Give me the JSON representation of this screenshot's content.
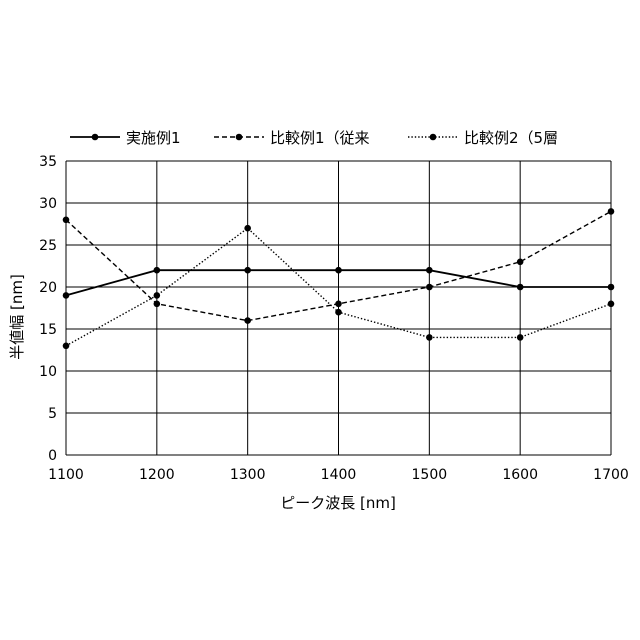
{
  "chart_data": {
    "type": "line",
    "x": [
      1100,
      1200,
      1300,
      1400,
      1500,
      1600,
      1700
    ],
    "xlabel": "ピーク波長 [nm]",
    "ylabel": "半値幅 [nm]",
    "xlim": [
      1100,
      1700
    ],
    "ylim": [
      0,
      35
    ],
    "yticks": [
      0,
      5,
      10,
      15,
      20,
      25,
      30,
      35
    ],
    "grid": true,
    "legend_position": "top",
    "series": [
      {
        "name": "実施例1",
        "values": [
          19,
          22,
          22,
          22,
          22,
          20,
          20
        ],
        "style": "solid"
      },
      {
        "name": "比較例1（従来",
        "values": [
          28,
          18,
          16,
          18,
          20,
          23,
          29
        ],
        "style": "dashed"
      },
      {
        "name": "比較例2（5層",
        "values": [
          13,
          19,
          27,
          17,
          14,
          14,
          18
        ],
        "style": "dotted"
      }
    ]
  }
}
